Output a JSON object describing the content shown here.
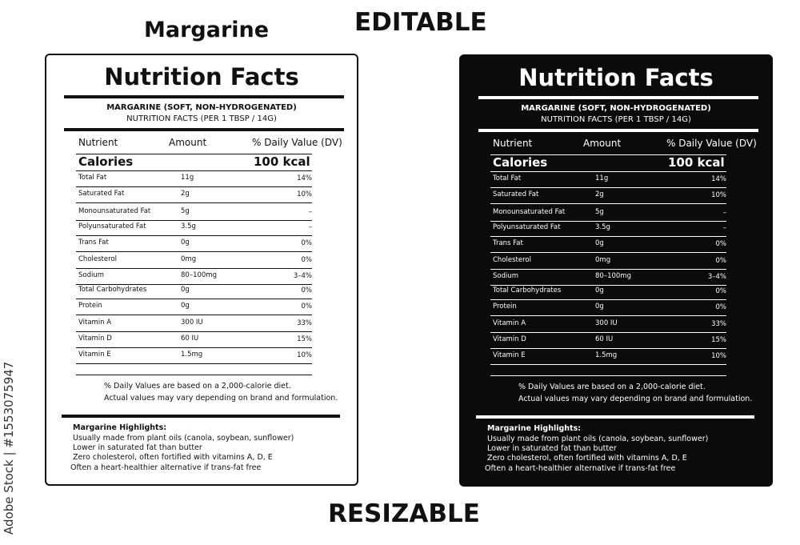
{
  "header": {
    "product": "Margarine",
    "editable": "EDITABLE",
    "resizable": "RESIZABLE"
  },
  "watermark": "Adobe Stock | #1553075947",
  "label": {
    "title": "Nutrition Facts",
    "subtitle": "MARGARINE (SOFT, NON-HYDROGENATED)",
    "serving": "NUTRITION FACTS (PER 1 TBSP / 14G)",
    "columns": {
      "nutrient": "Nutrient",
      "amount": "Amount",
      "dv": "% Daily Value (DV)"
    },
    "calories": {
      "label": "Calories",
      "value": "100 kcal"
    },
    "rows": [
      {
        "nutrient": "Total Fat",
        "amount": "11g",
        "dv": "14%"
      },
      {
        "nutrient": "Saturated Fat",
        "amount": "2g",
        "dv": "10%"
      },
      {
        "nutrient": "Monounsaturated Fat",
        "amount": "5g",
        "dv": "–"
      },
      {
        "nutrient": "Polyunsaturated Fat",
        "amount": "3.5g",
        "dv": "–"
      },
      {
        "nutrient": "Trans Fat",
        "amount": "0g",
        "dv": "0%"
      },
      {
        "nutrient": "Cholesterol",
        "amount": "0mg",
        "dv": "0%"
      },
      {
        "nutrient": "Sodium",
        "amount": "80–100mg",
        "dv": "3–4%"
      },
      {
        "nutrient": "Total Carbohydrates",
        "amount": "0g",
        "dv": "0%"
      },
      {
        "nutrient": "Protein",
        "amount": "0g",
        "dv": "0%"
      },
      {
        "nutrient": "Vitamin A",
        "amount": "300 IU",
        "dv": "33%"
      },
      {
        "nutrient": "Vitamin D",
        "amount": "60 IU",
        "dv": "15%"
      },
      {
        "nutrient": "Vitamin E",
        "amount": "1.5mg",
        "dv": "10%"
      }
    ],
    "footnotes": [
      "% Daily Values are based on a 2,000-calorie diet.",
      "Actual values may vary depending on brand and formulation."
    ],
    "highlights_title": "Margarine Highlights:",
    "highlights": [
      "Usually made from plant oils (canola, soybean, sunflower)",
      "Lower in saturated fat than butter",
      "Zero cholesterol, often fortified with vitamins A, D, E",
      "Often a heart-healthier alternative if trans-fat free"
    ]
  },
  "colors": {
    "light_bg": "#ffffff",
    "dark_bg": "#0b0b0b",
    "ink": "#111111"
  }
}
